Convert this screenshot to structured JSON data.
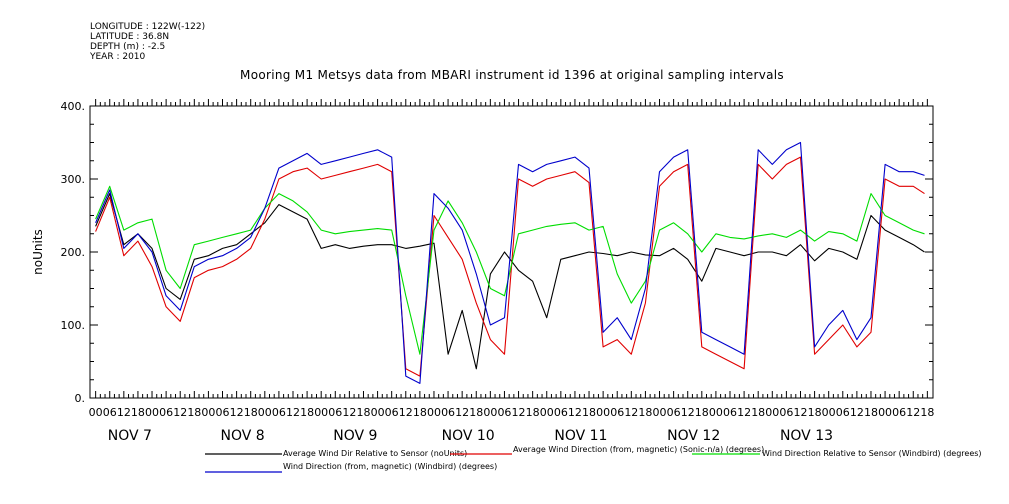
{
  "meta": {
    "longitude": "LONGITUDE : 122W(-122)",
    "latitude": "LATITUDE : 36.8N",
    "depth": "DEPTH (m) : -2.5",
    "year": "YEAR : 2010"
  },
  "chart_data": {
    "type": "line",
    "title": "Mooring M1 Metsys data from MBARI instrument id 1396 at original sampling intervals",
    "ylabel": "noUnits",
    "xlabel": "",
    "ylim": [
      0,
      400
    ],
    "xlim": [
      -0.1,
      14.85
    ],
    "y_ticks": [
      "0.",
      "100.",
      "200.",
      "300.",
      "400."
    ],
    "hour_tick_labels": [
      "00",
      "06",
      "12",
      "18"
    ],
    "day_labels": [
      "NOV  7",
      "NOV  8",
      "NOV  9",
      "NOV 10",
      "NOV 11",
      "NOV 12",
      "NOV 13"
    ],
    "grid": false,
    "series": [
      {
        "name": "Average Wind Dir Relative to Sensor (noUnits)",
        "color": "#000000",
        "x": [
          0,
          0.25,
          0.5,
          0.75,
          1,
          1.25,
          1.5,
          1.75,
          2,
          2.25,
          2.5,
          2.75,
          3,
          3.25,
          3.5,
          3.75,
          4,
          4.25,
          4.5,
          4.75,
          5,
          5.25,
          5.5,
          5.75,
          6,
          6.25,
          6.5,
          6.75,
          7,
          7.25,
          7.5,
          7.75,
          8,
          8.25,
          8.5,
          8.75,
          9,
          9.25,
          9.5,
          9.75,
          10,
          10.25,
          10.5,
          10.75,
          11,
          11.25,
          11.5,
          11.75,
          12,
          12.25,
          12.5,
          12.75,
          13,
          13.25,
          13.5,
          13.75,
          14,
          14.25,
          14.5,
          14.7
        ],
        "values": [
          235,
          280,
          210,
          225,
          205,
          150,
          135,
          190,
          195,
          205,
          210,
          225,
          240,
          265,
          255,
          245,
          205,
          210,
          205,
          208,
          210,
          210,
          205,
          208,
          212,
          60,
          120,
          40,
          170,
          200,
          175,
          160,
          110,
          190,
          195,
          200,
          198,
          195,
          200,
          196,
          195,
          205,
          190,
          160,
          205,
          200,
          195,
          200,
          200,
          195,
          210,
          188,
          205,
          200,
          190,
          250,
          230,
          220,
          210,
          200
        ]
      },
      {
        "name": "Average Wind Direction (from, magnetic) (Sonic-n/a) (degrees)",
        "color": "#e00000",
        "x": [
          0,
          0.25,
          0.5,
          0.75,
          1,
          1.25,
          1.5,
          1.75,
          2,
          2.25,
          2.5,
          2.75,
          3,
          3.25,
          3.5,
          3.75,
          4,
          4.25,
          4.5,
          4.75,
          5,
          5.25,
          5.5,
          5.75,
          6,
          6.25,
          6.5,
          6.75,
          7,
          7.25,
          7.5,
          7.75,
          8,
          8.25,
          8.5,
          8.75,
          9,
          9.25,
          9.5,
          9.75,
          10,
          10.25,
          10.5,
          10.75,
          11,
          11.25,
          11.5,
          11.75,
          12,
          12.25,
          12.5,
          12.75,
          13,
          13.25,
          13.5,
          13.75,
          14,
          14.25,
          14.5,
          14.7
        ],
        "values": [
          228,
          275,
          195,
          215,
          180,
          125,
          105,
          165,
          175,
          180,
          190,
          205,
          245,
          300,
          310,
          315,
          300,
          305,
          310,
          315,
          320,
          310,
          40,
          30,
          250,
          220,
          190,
          130,
          80,
          60,
          300,
          290,
          300,
          305,
          310,
          295,
          70,
          80,
          60,
          130,
          290,
          310,
          320,
          70,
          60,
          50,
          40,
          320,
          300,
          320,
          330,
          60,
          80,
          100,
          70,
          90,
          300,
          290,
          290,
          280
        ]
      },
      {
        "name": "Wind Direction Relative to Sensor (Windbird) (degrees)",
        "color": "#00dd00",
        "x": [
          0,
          0.25,
          0.5,
          0.75,
          1,
          1.25,
          1.5,
          1.75,
          2,
          2.25,
          2.5,
          2.75,
          3,
          3.25,
          3.5,
          3.75,
          4,
          4.25,
          4.5,
          4.75,
          5,
          5.25,
          5.5,
          5.75,
          6,
          6.25,
          6.5,
          6.75,
          7,
          7.25,
          7.5,
          7.75,
          8,
          8.25,
          8.5,
          8.75,
          9,
          9.25,
          9.5,
          9.75,
          10,
          10.25,
          10.5,
          10.75,
          11,
          11.25,
          11.5,
          11.75,
          12,
          12.25,
          12.5,
          12.75,
          13,
          13.25,
          13.5,
          13.75,
          14,
          14.25,
          14.5,
          14.7
        ],
        "values": [
          245,
          290,
          230,
          240,
          245,
          175,
          150,
          210,
          215,
          220,
          225,
          230,
          260,
          280,
          270,
          255,
          230,
          225,
          228,
          230,
          232,
          230,
          140,
          60,
          230,
          270,
          240,
          200,
          150,
          140,
          225,
          230,
          235,
          238,
          240,
          230,
          235,
          170,
          130,
          160,
          230,
          240,
          225,
          200,
          225,
          220,
          218,
          222,
          225,
          220,
          230,
          215,
          228,
          225,
          215,
          280,
          250,
          240,
          230,
          225
        ]
      },
      {
        "name": "Wind Direction (from, magnetic) (Windbird) (degrees)",
        "color": "#0000cc",
        "x": [
          0,
          0.25,
          0.5,
          0.75,
          1,
          1.25,
          1.5,
          1.75,
          2,
          2.25,
          2.5,
          2.75,
          3,
          3.25,
          3.5,
          3.75,
          4,
          4.25,
          4.5,
          4.75,
          5,
          5.25,
          5.5,
          5.75,
          6,
          6.25,
          6.5,
          6.75,
          7,
          7.25,
          7.5,
          7.75,
          8,
          8.25,
          8.5,
          8.75,
          9,
          9.25,
          9.5,
          9.75,
          10,
          10.25,
          10.5,
          10.75,
          11,
          11.25,
          11.5,
          11.75,
          12,
          12.25,
          12.5,
          12.75,
          13,
          13.25,
          13.5,
          13.75,
          14,
          14.25,
          14.5,
          14.7
        ],
        "values": [
          240,
          285,
          205,
          225,
          200,
          140,
          120,
          180,
          190,
          195,
          205,
          220,
          260,
          315,
          325,
          335,
          320,
          325,
          330,
          335,
          340,
          330,
          30,
          20,
          280,
          260,
          230,
          170,
          100,
          110,
          320,
          310,
          320,
          325,
          330,
          315,
          90,
          110,
          80,
          150,
          310,
          330,
          340,
          90,
          80,
          70,
          60,
          340,
          320,
          340,
          350,
          70,
          100,
          120,
          80,
          110,
          320,
          310,
          310,
          305
        ]
      }
    ]
  }
}
